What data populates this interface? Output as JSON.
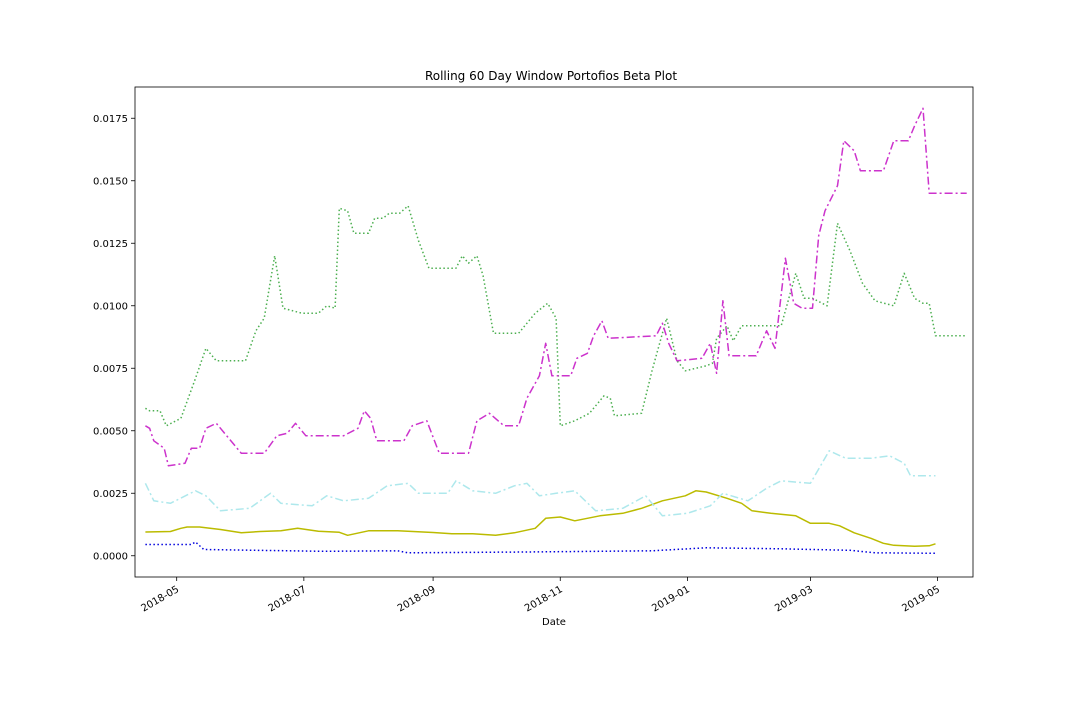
{
  "chart_data": {
    "type": "line",
    "title": "Rolling 60 Day Window Portofios Beta  Plot",
    "xlabel": "Date",
    "ylabel": "",
    "x_ticks": [
      "2018-05",
      "2018-07",
      "2018-09",
      "2018-11",
      "2019-01",
      "2019-03",
      "2019-05"
    ],
    "y_ticks": [
      "0.0000",
      "0.0025",
      "0.0050",
      "0.0075",
      "0.0100",
      "0.0125",
      "0.0150",
      "0.0175"
    ],
    "xlim": [
      "2018-04-11",
      "2019-05-18"
    ],
    "ylim": [
      -0.00085,
      0.01875
    ],
    "grid": false,
    "series": [
      {
        "color": "#0000dd",
        "style": "dotted",
        "points": [
          [
            "2018-04-16",
            0.00045
          ],
          [
            "2018-05-08",
            0.00045
          ],
          [
            "2018-05-10",
            0.00055
          ],
          [
            "2018-05-14",
            0.00025
          ],
          [
            "2018-07-10",
            0.00018
          ],
          [
            "2018-08-15",
            0.0002
          ],
          [
            "2018-08-20",
            0.00012
          ],
          [
            "2018-10-15",
            0.00015
          ],
          [
            "2018-12-15",
            0.0002
          ],
          [
            "2019-01-10",
            0.00032
          ],
          [
            "2019-02-15",
            0.00028
          ],
          [
            "2019-03-20",
            0.00022
          ],
          [
            "2019-04-01",
            0.00012
          ],
          [
            "2019-04-30",
            0.0001
          ]
        ]
      },
      {
        "color": "#bbbb00",
        "style": "solid",
        "points": [
          [
            "2018-04-16",
            0.00095
          ],
          [
            "2018-04-28",
            0.00097
          ],
          [
            "2018-05-03",
            0.0011
          ],
          [
            "2018-05-06",
            0.00115
          ],
          [
            "2018-05-12",
            0.00115
          ],
          [
            "2018-05-22",
            0.00105
          ],
          [
            "2018-06-01",
            0.00092
          ],
          [
            "2018-06-10",
            0.00097
          ],
          [
            "2018-06-20",
            0.001
          ],
          [
            "2018-06-28",
            0.0011
          ],
          [
            "2018-07-08",
            0.00098
          ],
          [
            "2018-07-18",
            0.00094
          ],
          [
            "2018-07-22",
            0.00082
          ],
          [
            "2018-08-01",
            0.001
          ],
          [
            "2018-08-15",
            0.001
          ],
          [
            "2018-09-01",
            0.00093
          ],
          [
            "2018-09-10",
            0.00088
          ],
          [
            "2018-09-20",
            0.00088
          ],
          [
            "2018-10-01",
            0.00082
          ],
          [
            "2018-10-10",
            0.00092
          ],
          [
            "2018-10-20",
            0.0011
          ],
          [
            "2018-10-25",
            0.0015
          ],
          [
            "2018-11-01",
            0.00155
          ],
          [
            "2018-11-08",
            0.0014
          ],
          [
            "2018-11-20",
            0.0016
          ],
          [
            "2018-12-01",
            0.0017
          ],
          [
            "2018-12-10",
            0.0019
          ],
          [
            "2018-12-20",
            0.0022
          ],
          [
            "2018-12-31",
            0.0024
          ],
          [
            "2019-01-05",
            0.0026
          ],
          [
            "2019-01-10",
            0.00255
          ],
          [
            "2019-01-20",
            0.0023
          ],
          [
            "2019-01-27",
            0.0021
          ],
          [
            "2019-02-01",
            0.0018
          ],
          [
            "2019-02-10",
            0.0017
          ],
          [
            "2019-02-22",
            0.0016
          ],
          [
            "2019-03-01",
            0.0013
          ],
          [
            "2019-03-10",
            0.0013
          ],
          [
            "2019-03-15",
            0.0012
          ],
          [
            "2019-03-22",
            0.00092
          ],
          [
            "2019-03-30",
            0.0007
          ],
          [
            "2019-04-05",
            0.0005
          ],
          [
            "2019-04-10",
            0.00042
          ],
          [
            "2019-04-20",
            0.00038
          ],
          [
            "2019-04-27",
            0.0004
          ],
          [
            "2019-04-30",
            0.00048
          ]
        ]
      },
      {
        "color": "#aee8ec",
        "style": "dashdot",
        "points": [
          [
            "2018-04-16",
            0.0029
          ],
          [
            "2018-04-20",
            0.0022
          ],
          [
            "2018-04-28",
            0.0021
          ],
          [
            "2018-05-10",
            0.0026
          ],
          [
            "2018-05-15",
            0.0024
          ],
          [
            "2018-05-22",
            0.0018
          ],
          [
            "2018-06-05",
            0.0019
          ],
          [
            "2018-06-15",
            0.0025
          ],
          [
            "2018-06-20",
            0.0021
          ],
          [
            "2018-07-05",
            0.002
          ],
          [
            "2018-07-12",
            0.0024
          ],
          [
            "2018-07-20",
            0.0022
          ],
          [
            "2018-08-01",
            0.0023
          ],
          [
            "2018-08-10",
            0.0028
          ],
          [
            "2018-08-20",
            0.0029
          ],
          [
            "2018-08-25",
            0.0025
          ],
          [
            "2018-09-08",
            0.0025
          ],
          [
            "2018-09-12",
            0.003
          ],
          [
            "2018-09-20",
            0.0026
          ],
          [
            "2018-10-01",
            0.0025
          ],
          [
            "2018-10-10",
            0.0028
          ],
          [
            "2018-10-16",
            0.0029
          ],
          [
            "2018-10-22",
            0.0024
          ],
          [
            "2018-10-30",
            0.0025
          ],
          [
            "2018-11-08",
            0.0026
          ],
          [
            "2018-11-18",
            0.0018
          ],
          [
            "2018-12-01",
            0.0019
          ],
          [
            "2018-12-12",
            0.0024
          ],
          [
            "2018-12-20",
            0.0016
          ],
          [
            "2019-01-01",
            0.0017
          ],
          [
            "2019-01-12",
            0.002
          ],
          [
            "2019-01-18",
            0.0025
          ],
          [
            "2019-01-30",
            0.0022
          ],
          [
            "2019-02-08",
            0.0027
          ],
          [
            "2019-02-15",
            0.003
          ],
          [
            "2019-03-01",
            0.0029
          ],
          [
            "2019-03-10",
            0.0042
          ],
          [
            "2019-03-18",
            0.0039
          ],
          [
            "2019-03-30",
            0.0039
          ],
          [
            "2019-04-08",
            0.004
          ],
          [
            "2019-04-15",
            0.0037
          ],
          [
            "2019-04-18",
            0.0032
          ],
          [
            "2019-04-30",
            0.0032
          ]
        ]
      },
      {
        "color": "#4caf50",
        "style": "dotted",
        "points": [
          [
            "2018-04-16",
            0.0059
          ],
          [
            "2018-04-18",
            0.0058
          ],
          [
            "2018-04-23",
            0.0058
          ],
          [
            "2018-04-26",
            0.0052
          ],
          [
            "2018-05-03",
            0.0055
          ],
          [
            "2018-05-10",
            0.0071
          ],
          [
            "2018-05-15",
            0.0083
          ],
          [
            "2018-05-20",
            0.0078
          ],
          [
            "2018-06-03",
            0.0078
          ],
          [
            "2018-06-08",
            0.009
          ],
          [
            "2018-06-12",
            0.0095
          ],
          [
            "2018-06-17",
            0.012
          ],
          [
            "2018-06-21",
            0.0099
          ],
          [
            "2018-06-30",
            0.0097
          ],
          [
            "2018-07-08",
            0.0097
          ],
          [
            "2018-07-12",
            0.01
          ],
          [
            "2018-07-16",
            0.0099
          ],
          [
            "2018-07-18",
            0.0139
          ],
          [
            "2018-07-22",
            0.0138
          ],
          [
            "2018-07-25",
            0.0129
          ],
          [
            "2018-08-01",
            0.0129
          ],
          [
            "2018-08-04",
            0.0135
          ],
          [
            "2018-08-08",
            0.0135
          ],
          [
            "2018-08-11",
            0.0137
          ],
          [
            "2018-08-16",
            0.0137
          ],
          [
            "2018-08-20",
            0.014
          ],
          [
            "2018-08-25",
            0.0126
          ],
          [
            "2018-08-30",
            0.0115
          ],
          [
            "2018-09-12",
            0.0115
          ],
          [
            "2018-09-15",
            0.012
          ],
          [
            "2018-09-18",
            0.0117
          ],
          [
            "2018-09-22",
            0.012
          ],
          [
            "2018-09-25",
            0.0112
          ],
          [
            "2018-09-30",
            0.0089
          ],
          [
            "2018-10-12",
            0.0089
          ],
          [
            "2018-10-20",
            0.0097
          ],
          [
            "2018-10-26",
            0.0101
          ],
          [
            "2018-10-30",
            0.0095
          ],
          [
            "2018-11-01",
            0.0052
          ],
          [
            "2018-11-08",
            0.0054
          ],
          [
            "2018-11-15",
            0.0057
          ],
          [
            "2018-11-22",
            0.0064
          ],
          [
            "2018-11-25",
            0.0063
          ],
          [
            "2018-11-27",
            0.0056
          ],
          [
            "2018-12-10",
            0.0057
          ],
          [
            "2018-12-15",
            0.0074
          ],
          [
            "2018-12-22",
            0.0095
          ],
          [
            "2018-12-27",
            0.0078
          ],
          [
            "2018-12-31",
            0.0074
          ],
          [
            "2019-01-10",
            0.0076
          ],
          [
            "2019-01-13",
            0.0077
          ],
          [
            "2019-01-15",
            0.0087
          ],
          [
            "2019-01-20",
            0.0092
          ],
          [
            "2019-01-23",
            0.0086
          ],
          [
            "2019-01-27",
            0.0092
          ],
          [
            "2019-02-15",
            0.0092
          ],
          [
            "2019-02-22",
            0.0113
          ],
          [
            "2019-02-26",
            0.0103
          ],
          [
            "2019-03-02",
            0.0103
          ],
          [
            "2019-03-09",
            0.01
          ],
          [
            "2019-03-14",
            0.0133
          ],
          [
            "2019-03-20",
            0.0122
          ],
          [
            "2019-03-26",
            0.0109
          ],
          [
            "2019-04-01",
            0.0102
          ],
          [
            "2019-04-10",
            0.01
          ],
          [
            "2019-04-15",
            0.0113
          ],
          [
            "2019-04-20",
            0.0103
          ],
          [
            "2019-04-24",
            0.0101
          ],
          [
            "2019-04-27",
            0.0101
          ],
          [
            "2019-04-30",
            0.0088
          ],
          [
            "2019-05-15",
            0.0088
          ]
        ]
      },
      {
        "color": "#cc33cc",
        "style": "dashdot",
        "points": [
          [
            "2018-04-16",
            0.0052
          ],
          [
            "2018-04-18",
            0.0051
          ],
          [
            "2018-04-20",
            0.0046
          ],
          [
            "2018-04-25",
            0.0043
          ],
          [
            "2018-04-27",
            0.0036
          ],
          [
            "2018-05-05",
            0.0037
          ],
          [
            "2018-05-08",
            0.0043
          ],
          [
            "2018-05-12",
            0.0043
          ],
          [
            "2018-05-15",
            0.0051
          ],
          [
            "2018-05-20",
            0.0053
          ],
          [
            "2018-05-25",
            0.0048
          ],
          [
            "2018-06-01",
            0.0041
          ],
          [
            "2018-06-12",
            0.0041
          ],
          [
            "2018-06-18",
            0.0048
          ],
          [
            "2018-06-23",
            0.0049
          ],
          [
            "2018-06-27",
            0.0053
          ],
          [
            "2018-07-02",
            0.0048
          ],
          [
            "2018-07-20",
            0.0048
          ],
          [
            "2018-07-27",
            0.0051
          ],
          [
            "2018-07-30",
            0.0058
          ],
          [
            "2018-08-02",
            0.0055
          ],
          [
            "2018-08-05",
            0.0046
          ],
          [
            "2018-08-18",
            0.0046
          ],
          [
            "2018-08-22",
            0.0052
          ],
          [
            "2018-08-29",
            0.0054
          ],
          [
            "2018-09-04",
            0.0041
          ],
          [
            "2018-09-18",
            0.0041
          ],
          [
            "2018-09-22",
            0.0054
          ],
          [
            "2018-09-28",
            0.0057
          ],
          [
            "2018-10-05",
            0.0052
          ],
          [
            "2018-10-12",
            0.0052
          ],
          [
            "2018-10-16",
            0.0063
          ],
          [
            "2018-10-22",
            0.0072
          ],
          [
            "2018-10-25",
            0.0085
          ],
          [
            "2018-10-28",
            0.0072
          ],
          [
            "2018-11-06",
            0.0072
          ],
          [
            "2018-11-09",
            0.0079
          ],
          [
            "2018-11-14",
            0.0081
          ],
          [
            "2018-11-17",
            0.0088
          ],
          [
            "2018-11-21",
            0.0094
          ],
          [
            "2018-11-24",
            0.0087
          ],
          [
            "2018-12-17",
            0.0088
          ],
          [
            "2018-12-20",
            0.0093
          ],
          [
            "2018-12-23",
            0.0085
          ],
          [
            "2018-12-27",
            0.0078
          ],
          [
            "2019-01-08",
            0.0079
          ],
          [
            "2019-01-12",
            0.0085
          ],
          [
            "2019-01-15",
            0.0073
          ],
          [
            "2019-01-18",
            0.0102
          ],
          [
            "2019-01-21",
            0.008
          ],
          [
            "2019-02-03",
            0.008
          ],
          [
            "2019-02-08",
            0.009
          ],
          [
            "2019-02-12",
            0.0083
          ],
          [
            "2019-02-17",
            0.0119
          ],
          [
            "2019-02-21",
            0.0101
          ],
          [
            "2019-02-25",
            0.0099
          ],
          [
            "2019-03-02",
            0.0099
          ],
          [
            "2019-03-05",
            0.0128
          ],
          [
            "2019-03-08",
            0.0138
          ],
          [
            "2019-03-14",
            0.0148
          ],
          [
            "2019-03-17",
            0.0166
          ],
          [
            "2019-03-22",
            0.0162
          ],
          [
            "2019-03-25",
            0.0154
          ],
          [
            "2019-04-05",
            0.0154
          ],
          [
            "2019-04-10",
            0.0166
          ],
          [
            "2019-04-17",
            0.0166
          ],
          [
            "2019-04-20",
            0.0172
          ],
          [
            "2019-04-24",
            0.0179
          ],
          [
            "2019-04-27",
            0.0145
          ],
          [
            "2019-05-15",
            0.0145
          ]
        ]
      }
    ]
  }
}
